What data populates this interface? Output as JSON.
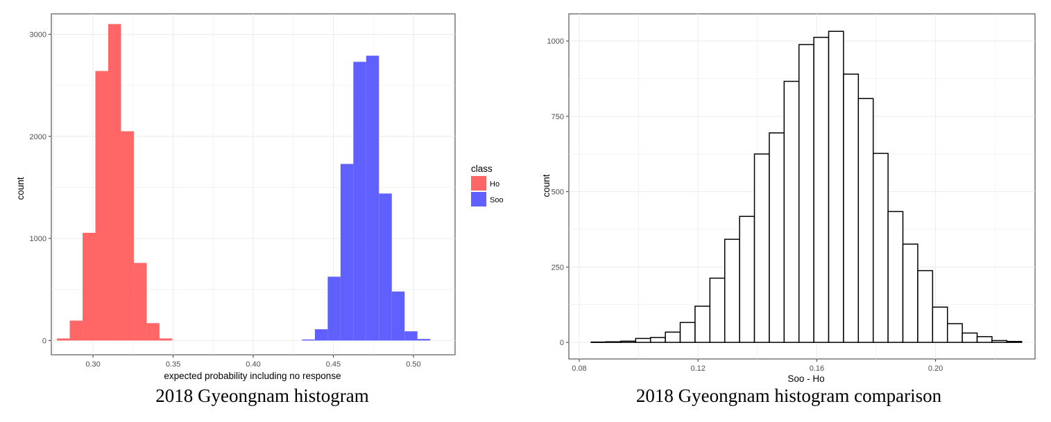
{
  "chart_data": [
    {
      "type": "bar",
      "title": "2018 Gyeongnam histogram",
      "xlabel": "expected probability including no response",
      "ylabel": "count",
      "xlim": [
        0.274,
        0.526
      ],
      "ylim": [
        -140,
        3200
      ],
      "x_ticks": [
        0.3,
        0.35,
        0.4,
        0.45,
        0.5
      ],
      "x_tick_labels": [
        "0.30",
        "0.35",
        "0.40",
        "0.45",
        "0.50"
      ],
      "y_ticks": [
        0,
        1000,
        2000,
        3000
      ],
      "y_tick_labels": [
        "0",
        "1000",
        "2000",
        "3000"
      ],
      "grid": true,
      "bin_width": 0.008,
      "legend": {
        "title": "class",
        "placement": "right"
      },
      "series": [
        {
          "name": "Ho",
          "color": "#FF6666",
          "bins": [
            0.2815,
            0.2895,
            0.2975,
            0.3055,
            0.3135,
            0.3215,
            0.3295,
            0.3375,
            0.3455
          ],
          "values": [
            20,
            195,
            1055,
            2640,
            3100,
            2050,
            760,
            170,
            20
          ]
        },
        {
          "name": "Soo",
          "color": "#6060FF",
          "bins": [
            0.4345,
            0.4425,
            0.4505,
            0.4585,
            0.4665,
            0.4745,
            0.4825,
            0.4905,
            0.4985,
            0.5065
          ],
          "values": [
            10,
            110,
            625,
            1730,
            2730,
            2790,
            1440,
            480,
            90,
            15
          ]
        }
      ]
    },
    {
      "type": "bar",
      "title": "2018 Gyeongnam histogram comparison",
      "xlabel": "Soo - Ho",
      "ylabel": "count",
      "xlim": [
        0.0765,
        0.2335
      ],
      "ylim": [
        -55,
        1090
      ],
      "x_ticks": [
        0.08,
        0.12,
        0.16,
        0.2
      ],
      "x_tick_labels": [
        "0.08",
        "0.12",
        "0.16",
        "0.20"
      ],
      "y_ticks": [
        0,
        250,
        500,
        750,
        1000
      ],
      "y_tick_labels": [
        "0",
        "250",
        "500",
        "750",
        "1000"
      ],
      "grid": true,
      "bin_width": 0.005,
      "bar_fill": "#FFFFFF",
      "bar_stroke": "#000000",
      "series": [
        {
          "bins": [
            0.0865,
            0.0915,
            0.0965,
            0.1015,
            0.1065,
            0.1115,
            0.1165,
            0.1215,
            0.1265,
            0.1315,
            0.1365,
            0.1415,
            0.1465,
            0.1515,
            0.1565,
            0.1615,
            0.1665,
            0.1715,
            0.1765,
            0.1815,
            0.1865,
            0.1915,
            0.1965,
            0.2015,
            0.2065,
            0.2115,
            0.2165,
            0.2215,
            0.2265
          ],
          "values": [
            1,
            2,
            4,
            13,
            16,
            34,
            66,
            120,
            213,
            342,
            418,
            625,
            695,
            866,
            988,
            1012,
            1032,
            890,
            809,
            627,
            434,
            326,
            238,
            117,
            62,
            31,
            19,
            6,
            3
          ]
        }
      ]
    }
  ]
}
